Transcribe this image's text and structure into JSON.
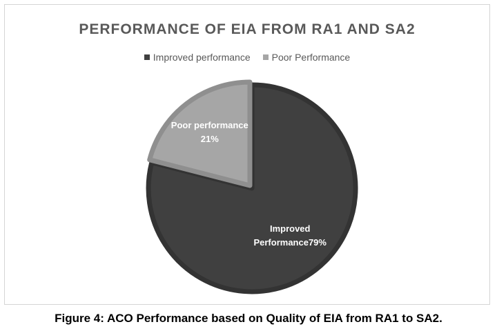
{
  "chart_data": {
    "type": "pie",
    "title": "PERFORMANCE OF EIA FROM RA1 AND SA2",
    "legend": {
      "placement": "top",
      "entries": [
        "Improved performance",
        "Poor Performance"
      ]
    },
    "slices": [
      {
        "name": "Improved performance",
        "value": 79,
        "color": "#404040",
        "label_lines": [
          "Improved",
          "Performance79%"
        ]
      },
      {
        "name": "Poor Performance",
        "value": 21,
        "color": "#a6a6a6",
        "label_lines": [
          "Poor performance",
          "21%"
        ]
      }
    ],
    "exploded_slice": "Improved performance"
  },
  "caption": "Figure 4: ACO Performance based on Quality of EIA from RA1 to SA2."
}
